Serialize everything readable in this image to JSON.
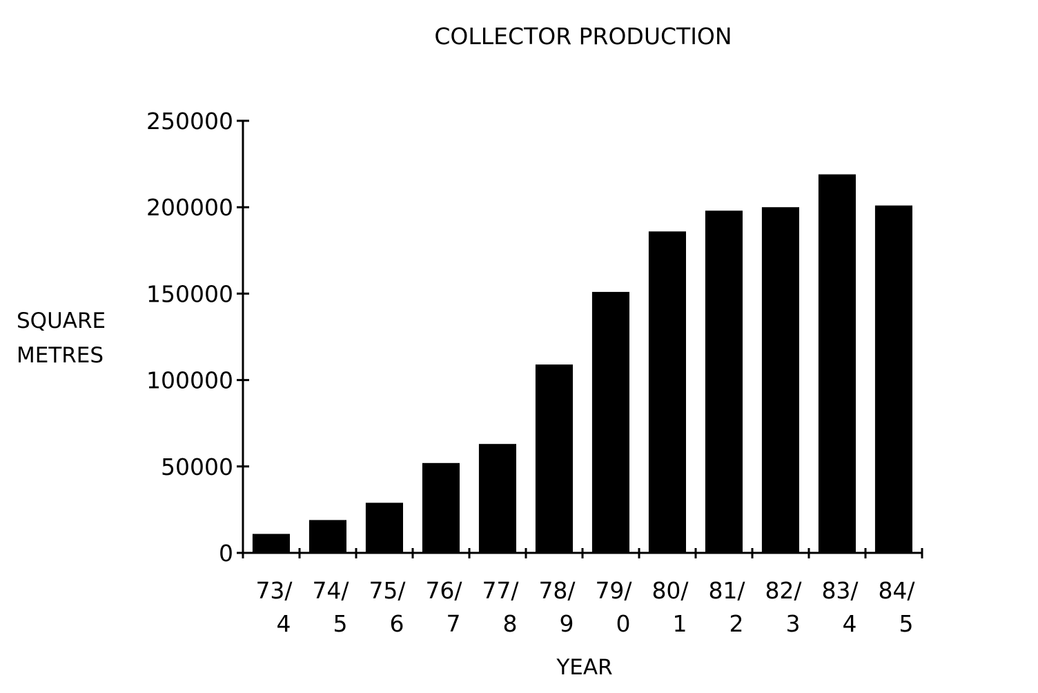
{
  "chart_data": {
    "type": "bar",
    "title": "COLLECTOR PRODUCTION",
    "xlabel": "YEAR",
    "ylabel_lines": [
      "SQUARE",
      "METRES"
    ],
    "categories": [
      [
        "73/",
        "4"
      ],
      [
        "74/",
        "5"
      ],
      [
        "75/",
        "6"
      ],
      [
        "76/",
        "7"
      ],
      [
        "77/",
        "8"
      ],
      [
        "78/",
        "9"
      ],
      [
        "79/",
        "0"
      ],
      [
        "80/",
        "1"
      ],
      [
        "81/",
        "2"
      ],
      [
        "82/",
        "3"
      ],
      [
        "83/",
        "4"
      ],
      [
        "84/",
        "5"
      ]
    ],
    "values": [
      11000,
      19000,
      29000,
      52000,
      63000,
      109000,
      151000,
      186000,
      198000,
      200000,
      219000,
      201000
    ],
    "yticks": [
      "0",
      "50000",
      "100000",
      "150000",
      "200000",
      "250000"
    ],
    "ylim": [
      0,
      250000
    ],
    "grid": false,
    "bar_color": "#000000",
    "axis_color": "#000000"
  }
}
